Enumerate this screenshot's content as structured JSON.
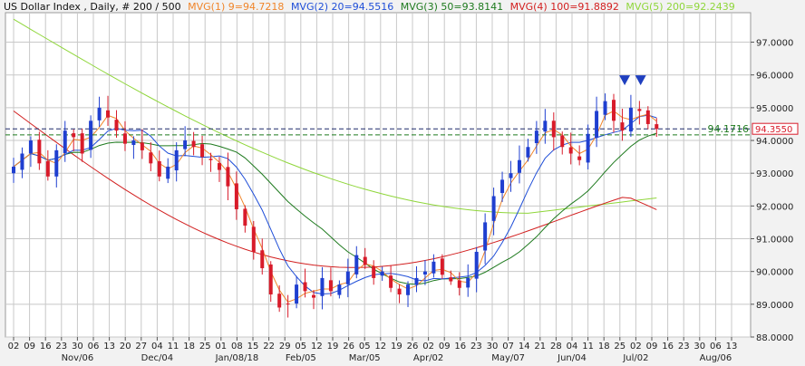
{
  "colors": {
    "background": "#f2f2f2",
    "plot_bg": "#ffffff",
    "grid": "#c8c8c8",
    "up_candle": "#1f3fd0",
    "down_candle": "#d81b2a",
    "mvg1": "#f0852a",
    "mvg2": "#1f4ed8",
    "mvg3": "#1e7a1e",
    "mvg4": "#d21f1f",
    "mvg5": "#8fd63a",
    "level_line_1": "#1e2a6a",
    "level_line_2": "#1e7a1e",
    "marker": "#1f3fbf"
  },
  "legend": {
    "title": "US Dollar Index , Daily, # 200 / 500",
    "items": [
      {
        "text": "MVG(1) 9=94.7218",
        "color": "#f0852a"
      },
      {
        "text": "MVG(2) 20=94.5516",
        "color": "#1f4ed8"
      },
      {
        "text": "MVG(3) 50=93.8141",
        "color": "#1e7a1e"
      },
      {
        "text": "MVG(4) 100=91.8892",
        "color": "#d21f1f"
      },
      {
        "text": "MVG(5) 200=92.2439",
        "color": "#8fd63a"
      }
    ]
  },
  "chart_data": {
    "type": "candlestick",
    "title": "US Dollar Index , Daily, # 200 / 500",
    "ylim": [
      88.0,
      97.9
    ],
    "y_ticks": [
      "97.0000",
      "96.0000",
      "95.0000",
      "94.0000",
      "93.0000",
      "92.0000",
      "91.0000",
      "90.0000",
      "89.0000",
      "88.0000"
    ],
    "y_tick_values": [
      97,
      96,
      95,
      94,
      93,
      92,
      91,
      90,
      89,
      88
    ],
    "x_day_labels": [
      "02",
      "09",
      "16",
      "23",
      "30",
      "06",
      "13",
      "20",
      "27",
      "04",
      "11",
      "18",
      "25",
      "01",
      "08",
      "15",
      "22",
      "29",
      "05",
      "12",
      "19",
      "26",
      "05",
      "12",
      "19",
      "26",
      "02",
      "09",
      "16",
      "23",
      "30",
      "07",
      "14",
      "21",
      "28",
      "04",
      "11",
      "18",
      "25",
      "02",
      "09",
      "16",
      "23",
      "30",
      "06",
      "13"
    ],
    "x_month_labels": [
      {
        "text": "Nov/06",
        "day_index": 4
      },
      {
        "text": "Dec/04",
        "day_index": 9
      },
      {
        "text": "Jan/08/18",
        "day_index": 14
      },
      {
        "text": "Feb/05",
        "day_index": 18
      },
      {
        "text": "Mar/05",
        "day_index": 22
      },
      {
        "text": "Apr/02",
        "day_index": 26
      },
      {
        "text": "May/07",
        "day_index": 31
      },
      {
        "text": "Jun/04",
        "day_index": 35
      },
      {
        "text": "Jul/02",
        "day_index": 39
      },
      {
        "text": "Aug/06",
        "day_index": 44
      }
    ],
    "close_series": [
      93.2,
      93.6,
      94.0,
      93.3,
      92.9,
      93.7,
      94.3,
      94.1,
      93.6,
      94.6,
      95.0,
      94.7,
      94.3,
      93.9,
      94.0,
      93.7,
      93.3,
      92.9,
      93.2,
      93.7,
      94.0,
      93.8,
      93.5,
      93.4,
      93.1,
      92.6,
      91.9,
      91.4,
      90.6,
      90.1,
      89.3,
      88.9,
      89.0,
      89.6,
      89.4,
      89.2,
      89.8,
      89.4,
      89.6,
      90.0,
      90.5,
      90.2,
      89.8,
      90.0,
      89.5,
      89.3,
      89.6,
      89.8,
      90.0,
      90.3,
      89.9,
      89.7,
      89.5,
      89.8,
      90.6,
      91.5,
      92.3,
      92.8,
      93.0,
      93.4,
      93.8,
      94.3,
      94.6,
      94.1,
      93.8,
      93.6,
      93.4,
      94.2,
      94.9,
      95.2,
      94.6,
      94.3,
      95.0,
      94.9,
      94.5,
      94.35
    ],
    "level_lines": [
      {
        "value": 94.355,
        "label": "94.3550"
      },
      {
        "value": 94.1716,
        "label": "94.1716"
      }
    ],
    "markers": [
      {
        "day_index": 38.3,
        "value": 95.85
      },
      {
        "day_index": 39.3,
        "value": 95.85
      }
    ],
    "moving_averages": [
      {
        "name": "MVG(1) 9",
        "last": 94.7218
      },
      {
        "name": "MVG(2) 20",
        "last": 94.5516
      },
      {
        "name": "MVG(3) 50",
        "last": 93.8141
      },
      {
        "name": "MVG(4) 100",
        "last": 91.8892
      },
      {
        "name": "MVG(5) 200",
        "last": 92.2439
      }
    ],
    "grid": true
  }
}
